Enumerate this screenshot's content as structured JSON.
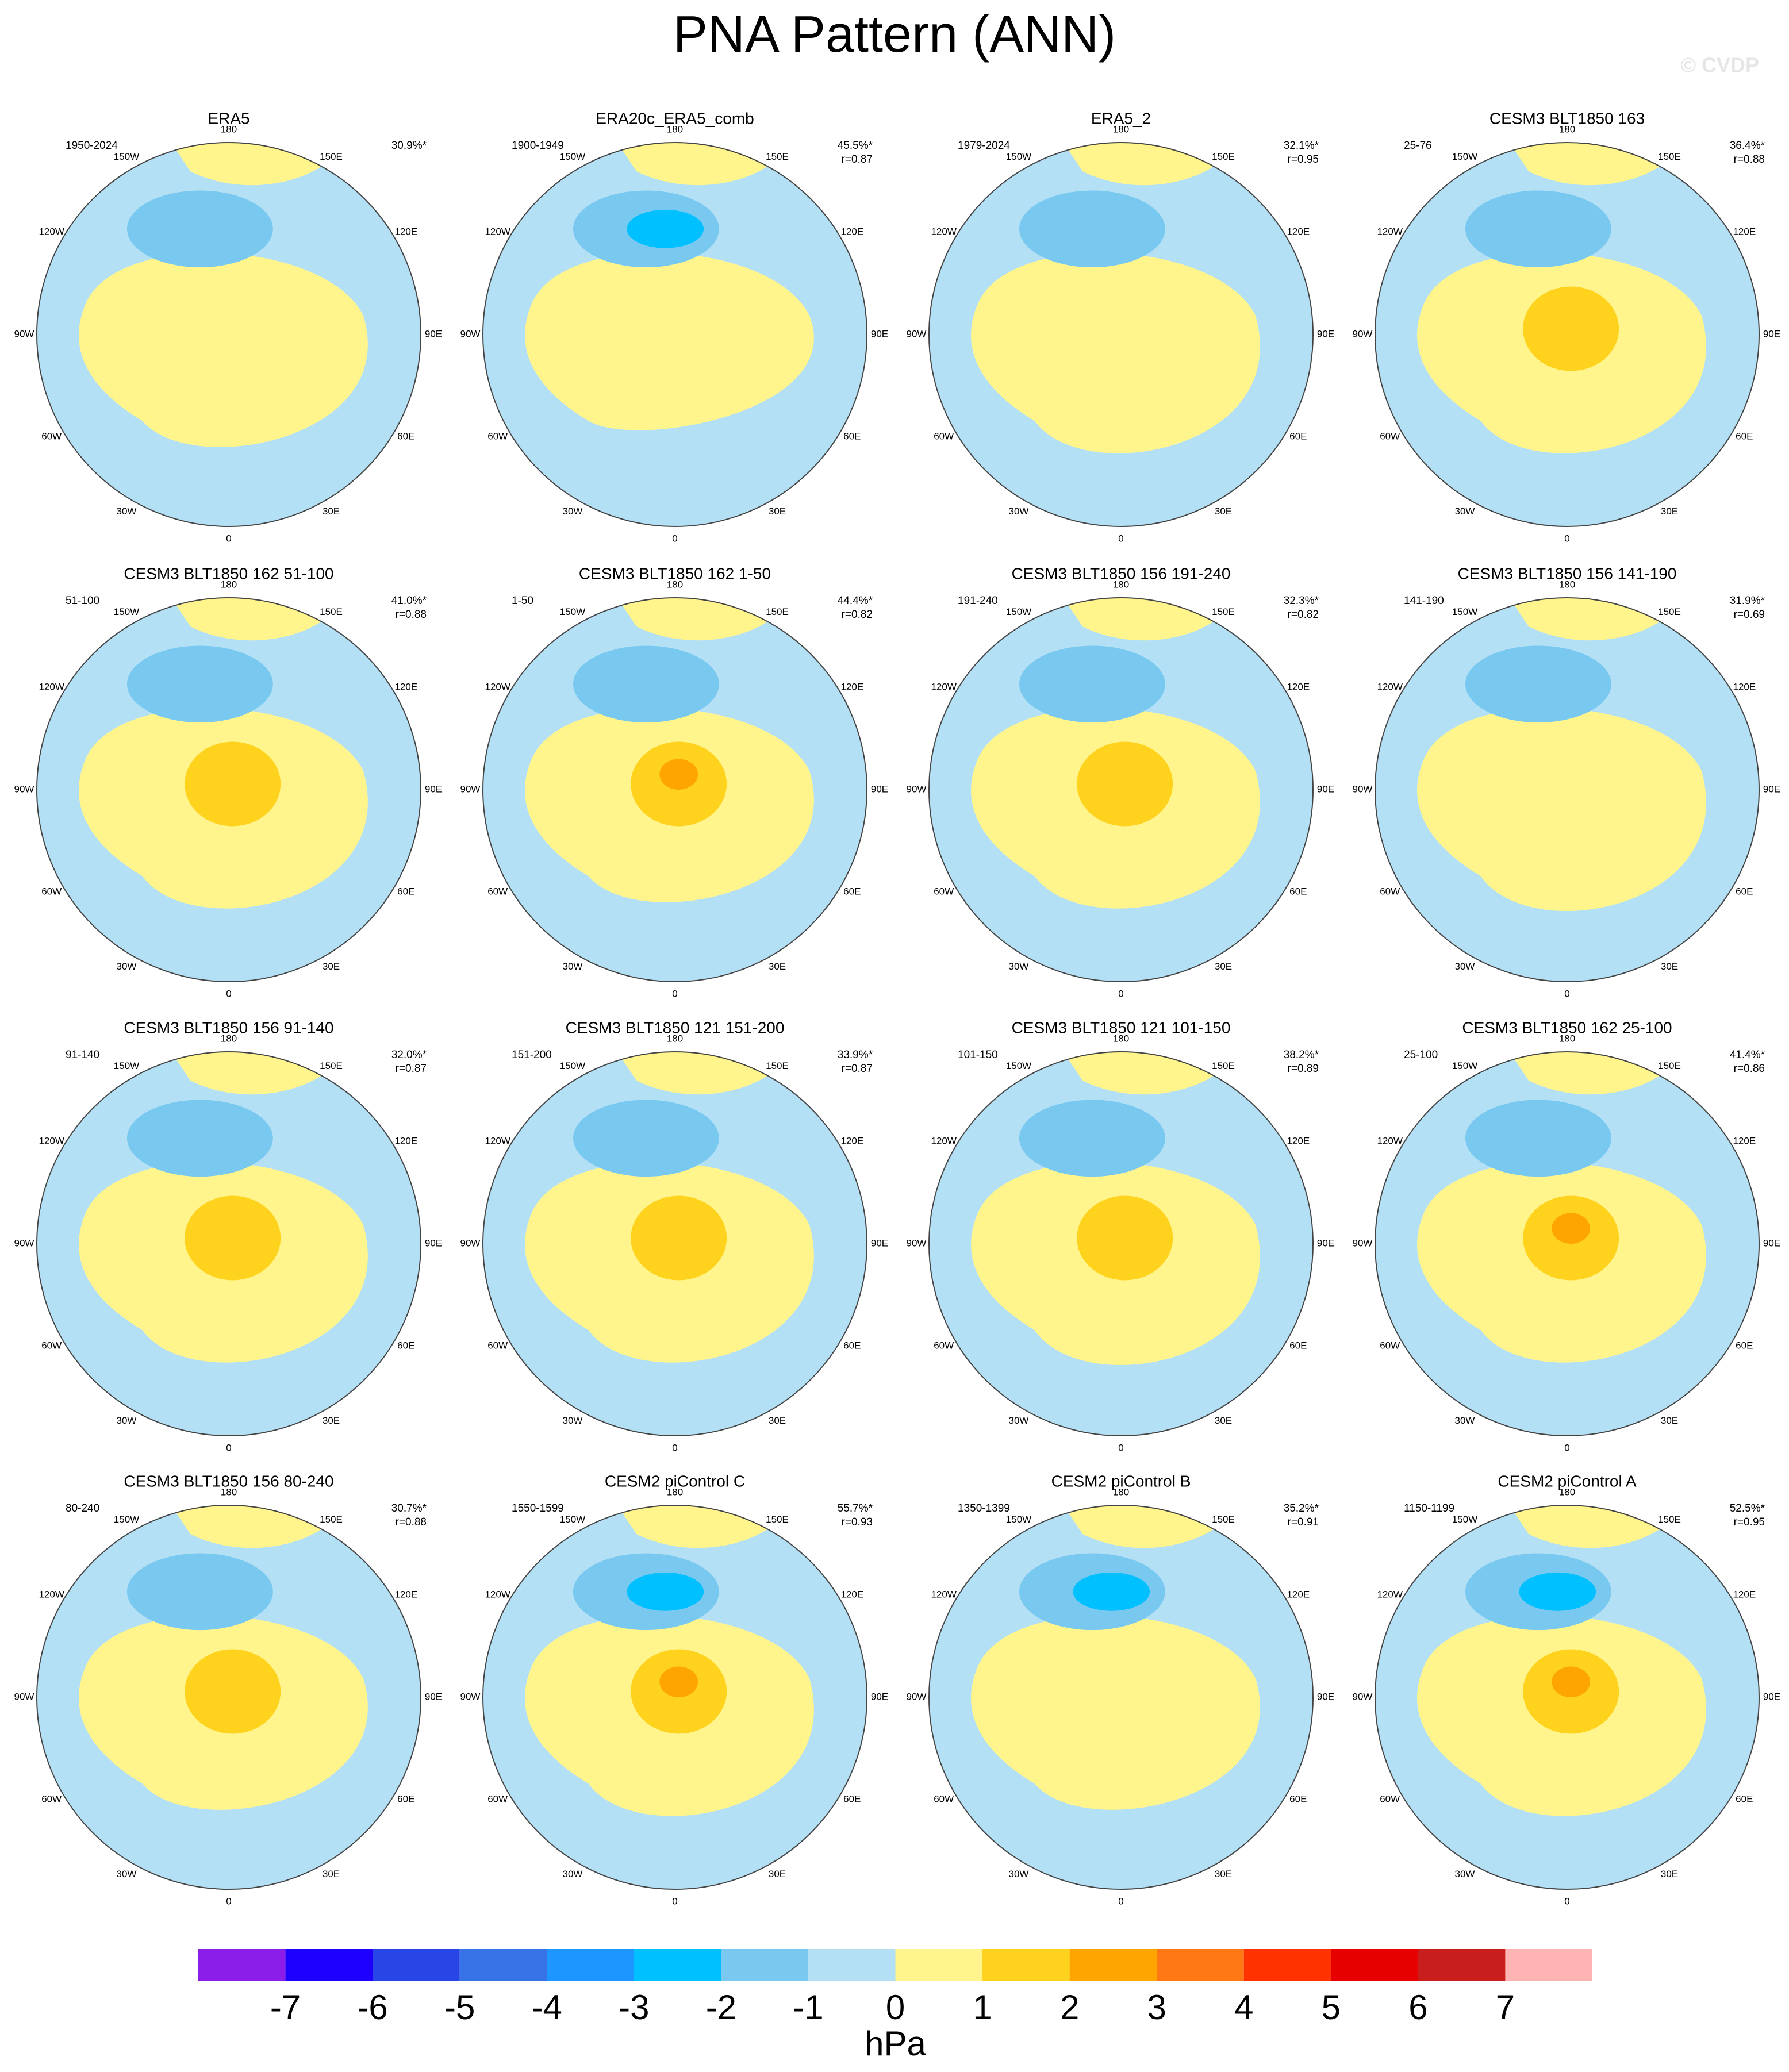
{
  "title": "PNA Pattern (ANN)",
  "watermark": "© CVDP",
  "lon_labels": [
    "180",
    "150E",
    "120E",
    "90E",
    "60E",
    "30E",
    "0",
    "30W",
    "60W",
    "90W",
    "120W",
    "150W"
  ],
  "panels": [
    {
      "title": "ERA5",
      "years": "1950-2024",
      "pct": "30.9%*"
    },
    {
      "title": "ERA20c_ERA5_comb",
      "years": "1900-1949",
      "pct": "45.5%*",
      "r": "r=0.87"
    },
    {
      "title": "ERA5_2",
      "years": "1979-2024",
      "pct": "32.1%*",
      "r": "r=0.95"
    },
    {
      "title": "CESM3 BLT1850 163",
      "years": "25-76",
      "pct": "36.4%*",
      "r": "r=0.88"
    },
    {
      "title": "CESM3 BLT1850 162 51-100",
      "years": "51-100",
      "pct": "41.0%*",
      "r": "r=0.88"
    },
    {
      "title": "CESM3 BLT1850 162 1-50",
      "years": "1-50",
      "pct": "44.4%*",
      "r": "r=0.82"
    },
    {
      "title": "CESM3 BLT1850 156 191-240",
      "years": "191-240",
      "pct": "32.3%*",
      "r": "r=0.82"
    },
    {
      "title": "CESM3 BLT1850 156 141-190",
      "years": "141-190",
      "pct": "31.9%*",
      "r": "r=0.69"
    },
    {
      "title": "CESM3 BLT1850 156 91-140",
      "years": "91-140",
      "pct": "32.0%*",
      "r": "r=0.87"
    },
    {
      "title": "CESM3 BLT1850 121 151-200",
      "years": "151-200",
      "pct": "33.9%*",
      "r": "r=0.87"
    },
    {
      "title": "CESM3 BLT1850 121 101-150",
      "years": "101-150",
      "pct": "38.2%*",
      "r": "r=0.89"
    },
    {
      "title": "CESM3 BLT1850 162 25-100",
      "years": "25-100",
      "pct": "41.4%*",
      "r": "r=0.86"
    },
    {
      "title": "CESM3 BLT1850 156 80-240",
      "years": "80-240",
      "pct": "30.7%*",
      "r": "r=0.88"
    },
    {
      "title": "CESM2 piControl C",
      "years": "1550-1599",
      "pct": "55.7%*",
      "r": "r=0.93"
    },
    {
      "title": "CESM2 piControl B",
      "years": "1350-1399",
      "pct": "35.2%*",
      "r": "r=0.91"
    },
    {
      "title": "CESM2 piControl A",
      "years": "1150-1199",
      "pct": "52.5%*",
      "r": "r=0.95"
    }
  ],
  "colorbar": {
    "ticks": [
      -7,
      -6,
      -5,
      -4,
      -3,
      -2,
      -1,
      0,
      1,
      2,
      3,
      4,
      5,
      6,
      7
    ],
    "label": "hPa",
    "colors": [
      "#8a1ee8",
      "#1e00ff",
      "#2846e6",
      "#3773e6",
      "#1e96ff",
      "#00c0ff",
      "#78c8f0",
      "#b4e0f5",
      "#fff58c",
      "#ffd21e",
      "#ffa500",
      "#ff7814",
      "#ff3200",
      "#e60000",
      "#c81e1e",
      "#ffb4b4"
    ]
  }
}
